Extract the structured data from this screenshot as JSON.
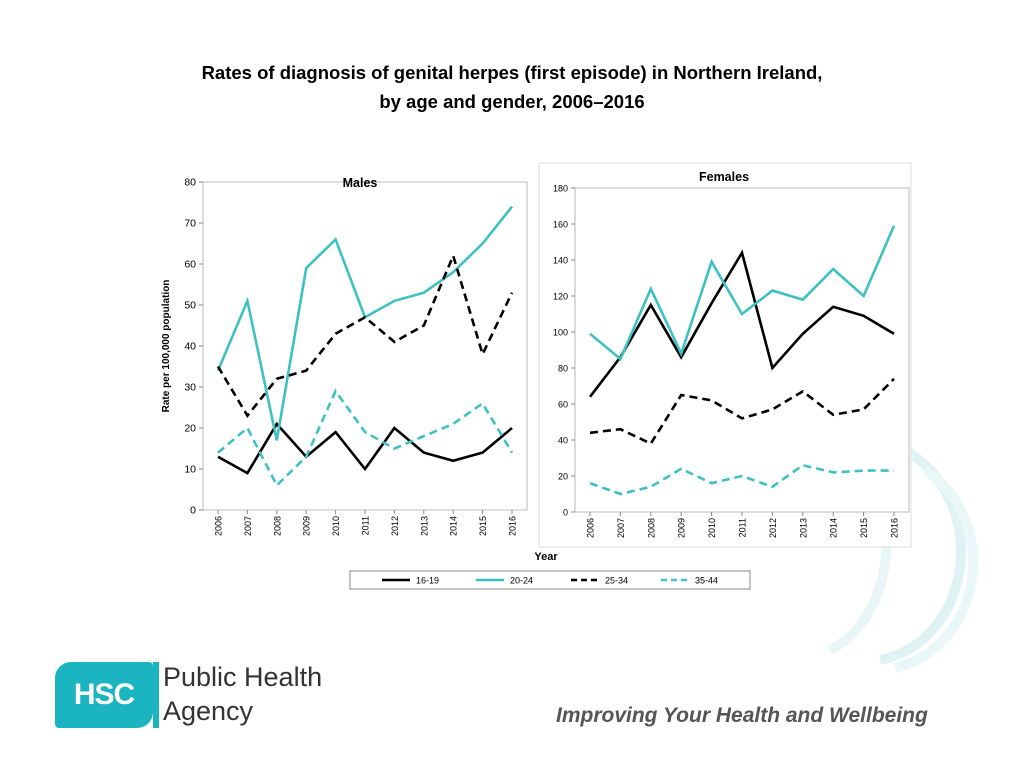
{
  "title": {
    "line1": "Rates of diagnosis of genital herpes (first episode) in Northern Ireland,",
    "line2": "by age and gender, 2006–2016"
  },
  "chart_data": [
    {
      "type": "line",
      "title": "Males",
      "xlabel": "",
      "ylabel": "Rate per 100,000 population",
      "categories": [
        "2006",
        "2007",
        "2008",
        "2009",
        "2010",
        "2011",
        "2012",
        "2013",
        "2014",
        "2015",
        "2016"
      ],
      "ylim": [
        0,
        80
      ],
      "yticks": [
        0,
        10,
        20,
        30,
        40,
        50,
        60,
        70,
        80
      ],
      "series": [
        {
          "name": "16-19",
          "values": [
            13,
            9,
            21,
            13,
            19,
            10,
            20,
            14,
            12,
            14,
            20
          ]
        },
        {
          "name": "20-24",
          "values": [
            34,
            51,
            17,
            59,
            66,
            47,
            51,
            53,
            58,
            65,
            74
          ]
        },
        {
          "name": "25-34",
          "values": [
            35,
            23,
            32,
            34,
            43,
            47,
            41,
            45,
            62,
            38,
            53
          ]
        },
        {
          "name": "35-44",
          "values": [
            14,
            20,
            6,
            13,
            29,
            19,
            15,
            18,
            21,
            26,
            14
          ]
        }
      ]
    },
    {
      "type": "line",
      "title": "Females",
      "xlabel": "Year",
      "ylabel": "",
      "categories": [
        "2006",
        "2007",
        "2008",
        "2009",
        "2010",
        "2011",
        "2012",
        "2013",
        "2014",
        "2015",
        "2016"
      ],
      "ylim": [
        0,
        180
      ],
      "yticks": [
        0,
        20,
        40,
        60,
        80,
        100,
        120,
        140,
        160,
        180
      ],
      "series": [
        {
          "name": "16-19",
          "values": [
            64,
            86,
            115,
            86,
            116,
            144,
            80,
            99,
            114,
            109,
            99
          ]
        },
        {
          "name": "20-24",
          "values": [
            99,
            85,
            124,
            88,
            139,
            110,
            123,
            118,
            135,
            120,
            159
          ]
        },
        {
          "name": "25-34",
          "values": [
            44,
            46,
            38,
            65,
            62,
            52,
            57,
            67,
            54,
            57,
            74
          ]
        },
        {
          "name": "35-44",
          "values": [
            16,
            10,
            14,
            24,
            16,
            20,
            14,
            26,
            22,
            23,
            23
          ]
        }
      ]
    }
  ],
  "legend": [
    {
      "name": "16-19",
      "color": "#000000",
      "dash": false
    },
    {
      "name": "20-24",
      "color": "#3ec1c3",
      "dash": false
    },
    {
      "name": "25-34",
      "color": "#000000",
      "dash": true
    },
    {
      "name": "35-44",
      "color": "#3ec1c3",
      "dash": true
    }
  ],
  "colors": {
    "black": "#000000",
    "teal": "#3ec1c3",
    "brand": "#1bb5c1"
  },
  "footer": {
    "logo_abbrev": "HSC",
    "logo_line1": "Public Health",
    "logo_line2": "Agency",
    "tagline": "Improving Your Health and Wellbeing"
  }
}
